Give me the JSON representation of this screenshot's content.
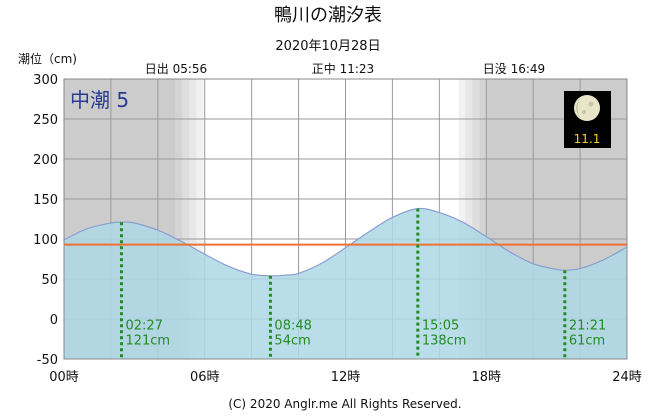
{
  "chart_data": {
    "type": "area",
    "title": "鴨川の潮汐表",
    "subtitle": "2020年10月28日",
    "ylabel": "潮位（cm)",
    "ylim": [
      -50,
      300
    ],
    "xlim": [
      0,
      24
    ],
    "y_ticks": [
      "-50",
      "0",
      "50",
      "100",
      "150",
      "200",
      "250",
      "300"
    ],
    "x_ticks": [
      "00時",
      "06時",
      "12時",
      "18時",
      "24時"
    ],
    "grid": true,
    "tide_label": "中潮 5",
    "moon_age": "11.1",
    "sun_events": {
      "sunrise": {
        "label": "日出 05:56",
        "hour": 5.933
      },
      "noon": {
        "label": "正中 11:23",
        "hour": 11.383
      },
      "sunset": {
        "label": "日没 16:49",
        "hour": 16.817
      }
    },
    "mean_level": 93,
    "series": [
      {
        "x": [
          0,
          1,
          2,
          2.45,
          3,
          4,
          5,
          6,
          7,
          8,
          8.8,
          9.5,
          10,
          11,
          12,
          13,
          14,
          15.083,
          16,
          17,
          18,
          19,
          20,
          21,
          21.35,
          22,
          23,
          24
        ],
        "values": [
          99,
          113,
          120,
          121,
          120,
          111,
          97,
          81,
          66,
          56,
          54,
          55,
          57,
          70,
          89,
          109,
          127,
          138,
          133,
          121,
          103,
          84,
          69,
          62,
          61,
          63,
          74,
          90
        ]
      }
    ],
    "annotations": [
      {
        "time": "02:27",
        "level": "121cm",
        "hour": 2.45,
        "value": 121
      },
      {
        "time": "08:48",
        "level": "54cm",
        "hour": 8.8,
        "value": 54
      },
      {
        "time": "15:05",
        "level": "138cm",
        "hour": 15.083,
        "value": 138
      },
      {
        "time": "21:21",
        "level": "61cm",
        "hour": 21.35,
        "value": 61
      }
    ],
    "colors": {
      "night": "#cccccc",
      "day": "#ffffff",
      "area_fill": "#add8e6",
      "area_line": "#8a9fd0",
      "mean_line": "#f07030",
      "marker": "#228b22",
      "tide_label": "#2a3a8f",
      "grid": "#9a9a9a"
    }
  },
  "footer": "(C) 2020 Anglr.me All Rights Reserved."
}
